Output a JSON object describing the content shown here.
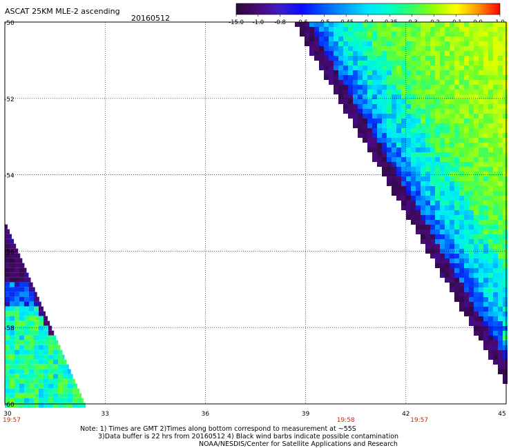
{
  "header": {
    "product": "ASCAT 25KM MLE-2 ascending",
    "date": "20160512"
  },
  "colorbar": {
    "labels": [
      "-15.0",
      "-1.0",
      "-0.8",
      "-0.6",
      "-0.5",
      "-0.45",
      "-0.4",
      "-0.35",
      "-0.3",
      "-0.2",
      "-0.1",
      "0.0",
      "1.0"
    ],
    "colors": [
      "#2a0a3a",
      "#4b0a78",
      "#3c1ec8",
      "#0a0aff",
      "#005aff",
      "#00a0ff",
      "#00e6ff",
      "#00ffc8",
      "#32ff64",
      "#96ff00",
      "#ffff00",
      "#ff9600",
      "#ff0000"
    ]
  },
  "map": {
    "lat_labels": [
      "-50",
      "-52",
      "-54",
      "-56",
      "-58",
      "-60"
    ],
    "lon_labels": [
      "30",
      "33",
      "36",
      "39",
      "42",
      "45"
    ],
    "times": [
      {
        "label": "19:57",
        "lon": 30.0
      },
      {
        "label": "19:58",
        "lon": 40.2
      },
      {
        "label": "19:57",
        "lon": 42.4
      }
    ],
    "swaths": [
      {
        "name": "west-swath",
        "lon_min": 30.0,
        "lon_max": 32.4,
        "lat_min": -60.0,
        "lat_max": -55.8
      },
      {
        "name": "east-swath",
        "lon_min": 38.7,
        "lon_max": 45.0,
        "lat_min": -59.4,
        "lat_max": -50.0
      }
    ]
  },
  "notes": {
    "line1": "Note: 1) Times are GMT 2)Times along bottom correspond to measurement at ~55S",
    "line2": "3)Data buffer is 22 hrs from 20160512 4) Black wind barbs indicate possible contamination",
    "line3": "NOAA/NESDIS/Center for Satellite Applications and Research"
  },
  "colors": {
    "grid": "#000000",
    "time_text": "#cc2200"
  }
}
